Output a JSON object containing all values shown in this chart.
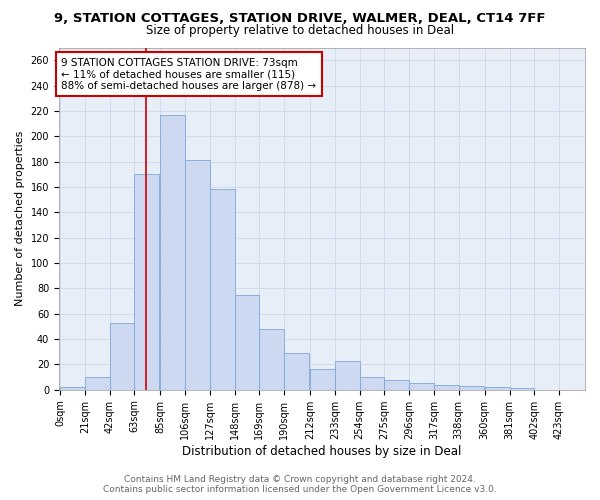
{
  "title": "9, STATION COTTAGES, STATION DRIVE, WALMER, DEAL, CT14 7FF",
  "subtitle": "Size of property relative to detached houses in Deal",
  "xlabel": "Distribution of detached houses by size in Deal",
  "ylabel": "Number of detached properties",
  "bar_labels": [
    "0sqm",
    "21sqm",
    "42sqm",
    "63sqm",
    "85sqm",
    "106sqm",
    "127sqm",
    "148sqm",
    "169sqm",
    "190sqm",
    "212sqm",
    "233sqm",
    "254sqm",
    "275sqm",
    "296sqm",
    "317sqm",
    "338sqm",
    "360sqm",
    "381sqm",
    "402sqm",
    "423sqm"
  ],
  "bar_values": [
    2,
    10,
    53,
    170,
    217,
    181,
    158,
    75,
    48,
    29,
    16,
    23,
    10,
    8,
    5,
    4,
    3,
    2,
    1,
    0,
    0
  ],
  "bar_color": "#ccd9f0",
  "bar_edge_color": "#7da8d8",
  "property_line_x": 73,
  "annotation_text": "9 STATION COTTAGES STATION DRIVE: 73sqm\n← 11% of detached houses are smaller (115)\n88% of semi-detached houses are larger (878) →",
  "annotation_box_color": "#ffffff",
  "annotation_box_edge_color": "#cc0000",
  "vline_color": "#cc0000",
  "ylim": [
    0,
    270
  ],
  "yticks": [
    0,
    20,
    40,
    60,
    80,
    100,
    120,
    140,
    160,
    180,
    200,
    220,
    240,
    260
  ],
  "footer_line1": "Contains HM Land Registry data © Crown copyright and database right 2024.",
  "footer_line2": "Contains public sector information licensed under the Open Government Licence v3.0.",
  "title_fontsize": 9.5,
  "subtitle_fontsize": 8.5,
  "xlabel_fontsize": 8.5,
  "ylabel_fontsize": 8,
  "tick_fontsize": 7,
  "footer_fontsize": 6.5,
  "annotation_fontsize": 7.5,
  "bin_width": 21,
  "background_color": "#e8eef8",
  "grid_color": "#c8d4e8"
}
